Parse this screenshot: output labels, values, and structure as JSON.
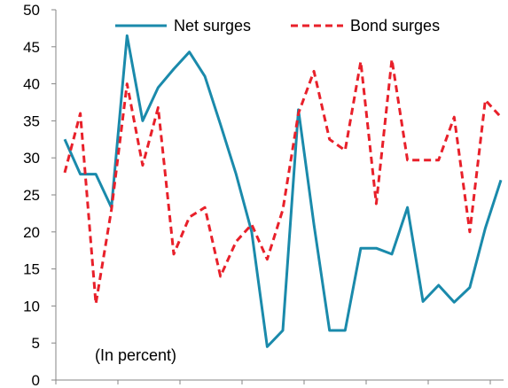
{
  "chart_data": {
    "type": "line",
    "title": "",
    "xlabel": "",
    "ylabel": "",
    "ylim": [
      0,
      50
    ],
    "yticks": [
      0,
      5,
      10,
      15,
      20,
      25,
      30,
      35,
      40,
      45,
      50
    ],
    "x_tick_count": 8,
    "grid": false,
    "legend": "top",
    "annotation": "(In percent)",
    "series": [
      {
        "name": "Net surges",
        "color": "#1a8aab",
        "style": "solid",
        "values": [
          32.5,
          27.8,
          27.8,
          23.3,
          46.5,
          35.0,
          39.5,
          42.0,
          44.3,
          41.0,
          34.5,
          27.8,
          20.0,
          4.5,
          6.7,
          36.5,
          21.0,
          6.7,
          6.7,
          17.8,
          17.8,
          17.0,
          23.3,
          10.6,
          12.8,
          10.5,
          12.5,
          20.5,
          27.0
        ]
      },
      {
        "name": "Bond surges",
        "color": "#e8202a",
        "style": "dashed",
        "values": [
          28.0,
          36.0,
          10.3,
          23.0,
          40.0,
          29.0,
          36.8,
          17.0,
          22.0,
          23.3,
          14.0,
          18.7,
          21.0,
          16.3,
          23.0,
          36.0,
          41.7,
          32.5,
          31.0,
          43.0,
          23.8,
          43.3,
          29.7,
          29.7,
          29.7,
          35.5,
          20.0,
          37.8,
          35.5
        ]
      }
    ]
  }
}
